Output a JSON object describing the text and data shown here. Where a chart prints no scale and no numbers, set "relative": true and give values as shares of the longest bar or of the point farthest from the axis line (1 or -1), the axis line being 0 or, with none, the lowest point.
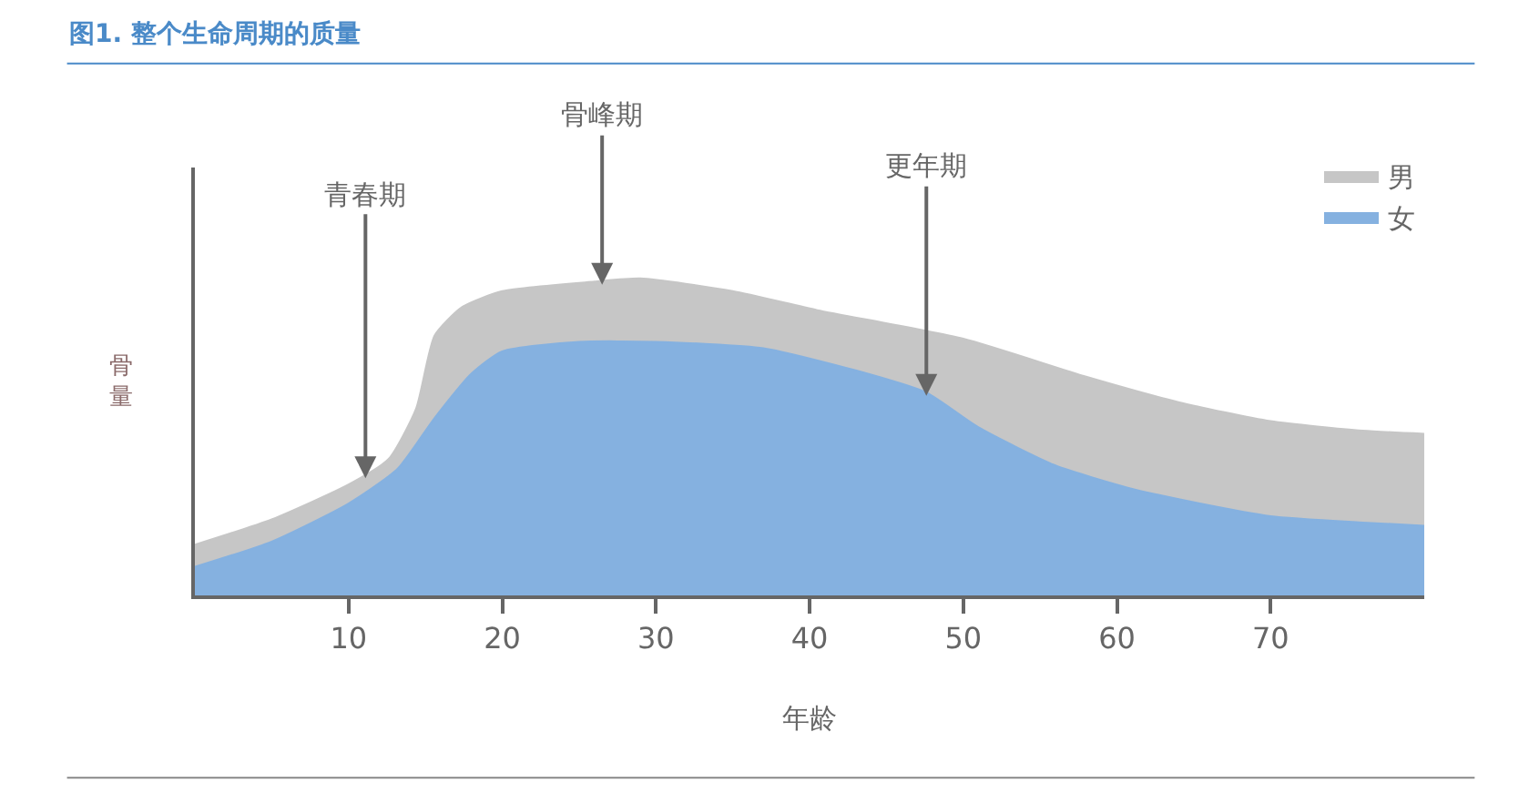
{
  "chart_data": {
    "type": "area",
    "title": "图1. 整个生命周期的质量",
    "xlabel": "年龄",
    "ylabel": "骨量",
    "relative": true,
    "xlim": [
      0,
      80
    ],
    "xticks": [
      10,
      20,
      30,
      40,
      50,
      60,
      70
    ],
    "legend": "top right",
    "series": [
      {
        "name": "男",
        "color": "#c6c6c6",
        "x": [
          0,
          5,
          10,
          12.6,
          14.4,
          15.6,
          17.4,
          20,
          26,
          29,
          35,
          40.5,
          50,
          58,
          64,
          70,
          76,
          80
        ],
        "values": [
          0.16,
          0.24,
          0.35,
          0.43,
          0.59,
          0.82,
          0.91,
          0.96,
          0.99,
          1,
          0.96,
          0.9,
          0.81,
          0.69,
          0.61,
          0.55,
          0.52,
          0.51
        ]
      },
      {
        "name": "女",
        "color": "#85b1e0",
        "x": [
          0,
          5,
          10,
          13.2,
          15.6,
          18,
          20,
          25,
          30,
          37,
          43,
          47.6,
          51,
          56,
          60.7,
          65.4,
          70,
          76,
          80
        ],
        "values": [
          0.09,
          0.17,
          0.29,
          0.4,
          0.56,
          0.7,
          0.77,
          0.8,
          0.8,
          0.78,
          0.71,
          0.64,
          0.53,
          0.41,
          0.34,
          0.29,
          0.25,
          0.23,
          0.22
        ]
      }
    ],
    "annotations": [
      {
        "text": "青春期",
        "x": 11.1,
        "y": 0.37
      },
      {
        "text": "骨峰期",
        "x": 26.5,
        "y": 0.98
      },
      {
        "text": "更年期",
        "x": 47.6,
        "y": 0.63
      }
    ]
  }
}
